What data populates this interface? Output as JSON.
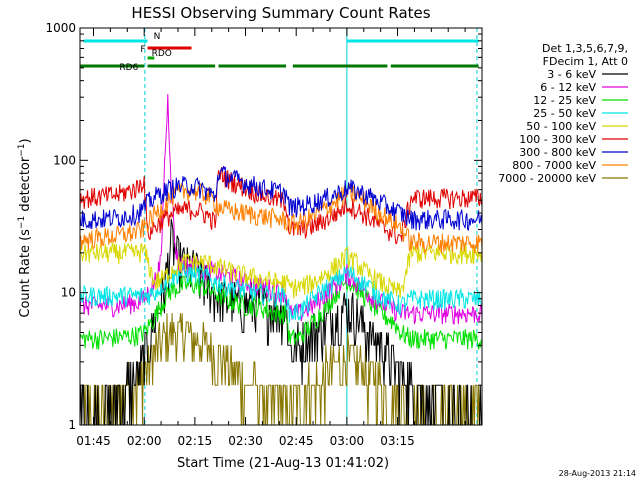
{
  "chart_data": {
    "type": "line",
    "title": "HESSI Observing Summary Count Rates",
    "xlabel": "Start Time (21-Aug-13 01:41:02)",
    "ylabel": "Count Rate (s⁻¹ detector⁻¹)",
    "ylabel_main": "Count Rate (s",
    "ylabel_sup1": "−1",
    "ylabel_mid": " detector",
    "ylabel_sup2": "−1",
    "ylabel_end": ")",
    "y_scale": "log",
    "ylim": [
      1,
      1000
    ],
    "y_ticks": [
      1,
      10,
      100,
      1000
    ],
    "y_tick_labels": [
      "1",
      "10",
      "100",
      "1000"
    ],
    "xlim_minutes": [
      101,
      220
    ],
    "x_ticks_minutes": [
      105,
      120,
      135,
      150,
      165,
      180,
      195
    ],
    "x_tick_labels": [
      "01:45",
      "02:00",
      "02:15",
      "02:30",
      "02:45",
      "03:00",
      "03:15"
    ],
    "legend_header": [
      "Det 1,3,5,6,7,9,",
      "FDecim 1, Att 0"
    ],
    "timestamp": "28-Aug-2013 21:14",
    "flag_bars": [
      {
        "label": "N",
        "color": "#00e5e5",
        "segments": [
          [
            102,
            121
          ],
          [
            180,
            219
          ]
        ]
      },
      {
        "label": "F",
        "color": "#e00000",
        "segments": [
          [
            121,
            134
          ]
        ]
      },
      {
        "label": "RDO",
        "color": "#00aa00",
        "segments": [
          [
            121,
            123
          ]
        ]
      },
      {
        "label": "RD6",
        "color": "#007700",
        "segments": [
          [
            101,
            120
          ],
          [
            121,
            141
          ],
          [
            142,
            162
          ],
          [
            164,
            192
          ],
          [
            193,
            219
          ]
        ]
      }
    ],
    "vlines_minutes": [
      {
        "x": 120.2,
        "style": "dashed",
        "color": "#00d0d0"
      },
      {
        "x": 180.0,
        "style": "solid",
        "color": "#00d0d0"
      },
      {
        "x": 218.5,
        "style": "dashed",
        "color": "#00d0d0"
      }
    ],
    "series": [
      {
        "name": "3 - 6 keV",
        "color": "#000000",
        "x": [
          101,
          106,
          112,
          118,
          120,
          123,
          126,
          128,
          130,
          132,
          135,
          138,
          141,
          144,
          147,
          150,
          153,
          156,
          159,
          162,
          163,
          166,
          170,
          174,
          178,
          180,
          182,
          186,
          190,
          194,
          196,
          199,
          204,
          209,
          213,
          218,
          220
        ],
        "y": [
          1.2,
          1.3,
          1.6,
          2.4,
          3.2,
          6,
          11,
          25,
          18,
          16,
          15,
          12,
          10,
          9,
          8.5,
          8,
          8.5,
          8,
          8,
          7.5,
          4,
          4,
          5,
          6,
          7,
          8,
          7,
          5,
          4,
          3,
          2.5,
          2,
          1.6,
          1.3,
          1.2,
          1.1,
          1.1
        ]
      },
      {
        "name": "6 - 12 keV",
        "color": "#e000e0",
        "x": [
          101,
          106,
          112,
          118,
          120,
          123,
          125,
          126,
          127,
          128,
          129,
          130,
          132,
          135,
          138,
          141,
          144,
          147,
          150,
          153,
          156,
          159,
          162,
          163,
          166,
          170,
          174,
          178,
          180,
          182,
          186,
          190,
          194,
          196,
          199,
          204,
          209,
          213,
          218,
          220
        ],
        "y": [
          8,
          8,
          8,
          8.5,
          9,
          12,
          17,
          90,
          290,
          70,
          25,
          17,
          16,
          16,
          15,
          14.5,
          13.5,
          13,
          12,
          11.5,
          11,
          10.5,
          10,
          7,
          7,
          8,
          10,
          12,
          14,
          12.5,
          10,
          8.5,
          7.5,
          7,
          7,
          7,
          7,
          7,
          7,
          7
        ]
      },
      {
        "name": "12 - 25 keV",
        "color": "#00e000",
        "x": [
          101,
          106,
          112,
          118,
          120,
          123,
          126,
          128,
          130,
          132,
          135,
          138,
          141,
          144,
          147,
          150,
          153,
          156,
          159,
          162,
          163,
          166,
          170,
          174,
          178,
          180,
          182,
          186,
          190,
          194,
          196,
          199,
          204,
          209,
          213,
          218,
          220
        ],
        "y": [
          4.5,
          4.5,
          4.6,
          4.8,
          5,
          6.5,
          9,
          10.5,
          11,
          11.5,
          11.5,
          11,
          10,
          9,
          8.5,
          8,
          8,
          7.5,
          7,
          7,
          4.5,
          4.6,
          6,
          8,
          11,
          12.5,
          11.5,
          9,
          7,
          6,
          5,
          4.5,
          4.5,
          4.5,
          4.5,
          4.5,
          4.5
        ]
      },
      {
        "name": "25 - 50 keV",
        "color": "#00e5e5",
        "x": [
          101,
          106,
          112,
          118,
          120,
          123,
          126,
          128,
          130,
          132,
          135,
          138,
          141,
          144,
          147,
          150,
          153,
          156,
          159,
          162,
          163,
          166,
          170,
          174,
          178,
          180,
          182,
          186,
          190,
          194,
          196,
          199,
          204,
          209,
          213,
          218,
          220
        ],
        "y": [
          9.5,
          9.5,
          9.5,
          9.5,
          9.5,
          10,
          12,
          13,
          14,
          14,
          14,
          13.5,
          12,
          11.5,
          11,
          10.5,
          10,
          10,
          9.5,
          9.5,
          7,
          7.2,
          9,
          11,
          13,
          14.5,
          13.5,
          11.5,
          9.5,
          8.5,
          8,
          9,
          9,
          9,
          9,
          9,
          9
        ]
      },
      {
        "name": "50 - 100 keV",
        "color": "#d8d800",
        "x": [
          101,
          106,
          112,
          118,
          120,
          123,
          126,
          128,
          130,
          132,
          135,
          138,
          141,
          144,
          147,
          150,
          153,
          156,
          159,
          162,
          163,
          166,
          170,
          174,
          178,
          180,
          182,
          186,
          190,
          194,
          196,
          199,
          204,
          209,
          213,
          218,
          220
        ],
        "y": [
          20,
          20,
          20,
          20,
          21,
          12,
          13,
          15,
          16,
          17,
          17,
          17,
          16,
          15,
          14,
          13.5,
          13,
          12.5,
          12,
          12,
          11,
          11,
          12,
          14,
          17,
          19,
          17.5,
          14,
          12,
          10.5,
          10,
          20,
          20,
          20,
          20,
          20,
          20
        ]
      },
      {
        "name": "100 - 300 keV",
        "color": "#e00000",
        "x": [
          101,
          106,
          112,
          118,
          120,
          121,
          124,
          127,
          130,
          133,
          136,
          139,
          141,
          142,
          145,
          150,
          155,
          160,
          162,
          163,
          166,
          170,
          174,
          178,
          180,
          182,
          186,
          190,
          194,
          196,
          199,
          204,
          209,
          213,
          218,
          220
        ],
        "y": [
          52,
          53,
          55,
          62,
          72,
          28,
          33,
          38,
          41,
          43,
          42,
          38,
          34,
          80,
          72,
          62,
          55,
          50,
          48,
          30,
          30,
          32,
          36,
          42,
          47,
          44,
          38,
          32,
          28,
          26,
          52,
          52,
          52,
          52,
          52,
          52
        ]
      },
      {
        "name": "300 - 800 keV",
        "color": "#0000d0",
        "x": [
          101,
          106,
          112,
          118,
          120,
          121,
          124,
          127,
          130,
          133,
          136,
          139,
          141,
          142,
          145,
          150,
          155,
          160,
          162,
          163,
          166,
          170,
          174,
          178,
          180,
          182,
          186,
          190,
          194,
          196,
          199,
          204,
          209,
          213,
          218,
          220
        ],
        "y": [
          36,
          36,
          37,
          40,
          44,
          48,
          55,
          60,
          64,
          65,
          63,
          58,
          52,
          82,
          75,
          68,
          62,
          58,
          56,
          44,
          45,
          48,
          52,
          58,
          62,
          60,
          55,
          48,
          42,
          40,
          36,
          36,
          36,
          36,
          36,
          36
        ]
      },
      {
        "name": "800 - 7000 keV",
        "color": "#ff8000",
        "x": [
          101,
          106,
          112,
          118,
          120,
          121,
          124,
          127,
          130,
          133,
          136,
          139,
          141,
          142,
          145,
          150,
          155,
          160,
          162,
          163,
          166,
          170,
          174,
          178,
          180,
          182,
          186,
          190,
          194,
          196,
          199,
          204,
          209,
          213,
          218,
          220
        ],
        "y": [
          25,
          26,
          27,
          29,
          31,
          34,
          41,
          50,
          56,
          60,
          58,
          54,
          48,
          45,
          42,
          40,
          38,
          36,
          35,
          33,
          34,
          38,
          44,
          52,
          58,
          56,
          48,
          40,
          34,
          31,
          24,
          24,
          24,
          24,
          24,
          24
        ]
      },
      {
        "name": "7000 - 20000 keV",
        "color": "#887700",
        "x": [
          101,
          106,
          112,
          118,
          120,
          123,
          126,
          128,
          130,
          132,
          135,
          138,
          141,
          144,
          147,
          150,
          153,
          156,
          159,
          162,
          163,
          166,
          170,
          174,
          178,
          180,
          182,
          186,
          190,
          194,
          196,
          199,
          204,
          209,
          213,
          218,
          220
        ],
        "y": [
          1.3,
          1.4,
          1.6,
          2,
          2.5,
          3.5,
          4.5,
          5,
          5,
          5,
          4.5,
          4,
          3.5,
          3,
          2.5,
          2,
          1.8,
          1.6,
          1.5,
          1.4,
          1.4,
          1.6,
          2,
          2.5,
          3,
          3.2,
          3,
          2.5,
          2,
          1.6,
          1.4,
          1.3,
          1.3,
          1.3,
          1.3,
          1.3,
          1.3
        ]
      }
    ]
  }
}
